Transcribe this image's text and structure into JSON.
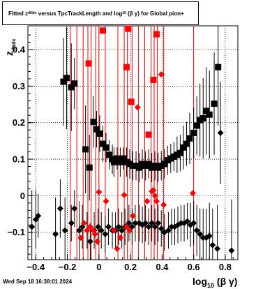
{
  "title": {
    "prefix": "Fitted",
    "zsym": "z",
    "zsub": "dNdx",
    "mid": "versus TpcTrackLength and log",
    "logsub": "10",
    "suffix": "(β γ) for Global pion+"
  },
  "footer": "Wed Sep 18 16:38:01 2024",
  "axes": {
    "xlabel_main": "log",
    "xlabel_sub": "10",
    "xlabel_tail": "(β γ)",
    "ylabel_main": "z",
    "ylabel_sub": "dNdx"
  },
  "chart_data": {
    "type": "scatter",
    "xlim": [
      -0.45,
      0.88
    ],
    "ylim": [
      -0.175,
      0.465
    ],
    "xticks": [
      -0.4,
      -0.2,
      0,
      0.2,
      0.4,
      0.6,
      0.8
    ],
    "xtick_labels": [
      "−0.4",
      "−0.2",
      "0",
      "0.2",
      "0.4",
      "0.6",
      "0.8"
    ],
    "yticks": [
      -0.1,
      0,
      0.1,
      0.2,
      0.3,
      0.4
    ],
    "ytick_labels": [
      "−0.1",
      "0",
      "0.1",
      "0.2",
      "0.3",
      "0.4"
    ],
    "grid": true,
    "colors": {
      "black": "#000000",
      "red": "#ff0000"
    },
    "vlines_x": [
      -0.18,
      -0.14,
      -0.1,
      -0.07,
      -0.05,
      -0.02,
      0.0,
      0.04,
      0.12,
      0.16,
      0.18,
      0.21,
      0.25,
      0.29,
      0.33,
      0.35,
      0.37,
      0.41,
      0.6
    ],
    "series": [
      {
        "marker": "square",
        "color": "#000000",
        "points": [
          [
            -0.225,
            0.312,
            0.12
          ],
          [
            -0.205,
            0.322,
            0.14
          ],
          [
            -0.175,
            0.297,
            0.12
          ],
          [
            -0.155,
            0.307,
            0.07
          ],
          [
            -0.085,
            0.127,
            0.12
          ],
          [
            -0.06,
            0.077,
            0.09
          ],
          [
            -0.035,
            0.202,
            0.07
          ],
          [
            -0.015,
            0.182,
            0.05
          ],
          [
            0.005,
            0.17,
            0.05
          ],
          [
            0.025,
            0.142,
            0.05
          ],
          [
            0.045,
            0.132,
            0.04
          ],
          [
            0.065,
            0.112,
            0.04
          ],
          [
            0.085,
            0.1,
            0.04
          ],
          [
            0.095,
            0.092,
            0.04
          ],
          [
            0.115,
            0.102,
            0.03
          ],
          [
            0.135,
            0.092,
            0.04
          ],
          [
            0.155,
            0.102,
            0.03
          ],
          [
            0.175,
            0.092,
            0.04
          ],
          [
            0.195,
            0.087,
            0.04
          ],
          [
            0.215,
            0.082,
            0.04
          ],
          [
            0.235,
            0.082,
            0.04
          ],
          [
            0.255,
            0.077,
            0.04
          ],
          [
            0.275,
            0.087,
            0.04
          ],
          [
            0.295,
            0.082,
            0.04
          ],
          [
            0.315,
            0.087,
            0.04
          ],
          [
            0.335,
            0.077,
            0.04
          ],
          [
            0.355,
            0.082,
            0.04
          ],
          [
            0.375,
            0.077,
            0.04
          ],
          [
            0.395,
            0.082,
            0.04
          ],
          [
            0.415,
            0.087,
            0.04
          ],
          [
            0.435,
            0.097,
            0.04
          ],
          [
            0.455,
            0.102,
            0.04
          ],
          [
            0.475,
            0.107,
            0.04
          ],
          [
            0.495,
            0.112,
            0.05
          ],
          [
            0.515,
            0.117,
            0.05
          ],
          [
            0.535,
            0.132,
            0.06
          ],
          [
            0.555,
            0.142,
            0.06
          ],
          [
            0.575,
            0.157,
            0.07
          ],
          [
            0.6,
            0.172,
            0.07
          ],
          [
            0.62,
            0.192,
            0.08
          ],
          [
            0.64,
            0.207,
            0.1
          ],
          [
            0.66,
            0.212,
            0.11
          ],
          [
            0.68,
            0.232,
            0.12
          ],
          [
            0.7,
            0.222,
            0.12
          ],
          [
            0.73,
            0.252,
            0.14
          ],
          [
            0.755,
            0.352,
            0.16
          ]
        ]
      },
      {
        "marker": "square",
        "color": "#ff0000",
        "points": [
          [
            -0.065,
            0.362,
            0
          ],
          [
            0.025,
            0.452,
            0
          ],
          [
            0.175,
            0.352,
            0
          ],
          [
            0.185,
            0.457,
            0
          ],
          [
            0.205,
            0.257,
            0
          ],
          [
            0.315,
            0.167,
            0
          ],
          [
            0.345,
            0.317,
            0
          ],
          [
            0.365,
            0.442,
            0
          ]
        ]
      },
      {
        "marker": "diamond",
        "color": "#000000",
        "points": [
          [
            -0.425,
            -0.085,
            0.1
          ],
          [
            -0.4,
            -0.065,
            0.08
          ],
          [
            -0.385,
            -0.055,
            0.06
          ],
          [
            -0.275,
            -0.105,
            0.1
          ],
          [
            -0.245,
            -0.035,
            0.08
          ],
          [
            -0.215,
            -0.095,
            0.09
          ],
          [
            -0.175,
            -0.075,
            0.05
          ],
          [
            -0.155,
            -0.035,
            0.05
          ],
          [
            -0.125,
            -0.095,
            0.08
          ],
          [
            -0.105,
            -0.085,
            0.06
          ],
          [
            -0.075,
            -0.095,
            0.05
          ],
          [
            -0.055,
            -0.125,
            0.05
          ],
          [
            -0.03,
            -0.095,
            0.05
          ],
          [
            -0.005,
            -0.085,
            0.05
          ],
          [
            0.015,
            -0.095,
            0.05
          ],
          [
            0.04,
            -0.105,
            0.05
          ],
          [
            0.06,
            -0.085,
            0.05
          ],
          [
            0.085,
            -0.095,
            0.05
          ],
          [
            0.105,
            -0.095,
            0.05
          ],
          [
            0.125,
            -0.085,
            0.05
          ],
          [
            0.145,
            -0.095,
            0.05
          ],
          [
            0.165,
            -0.085,
            0.05
          ],
          [
            0.19,
            -0.075,
            0.05
          ],
          [
            0.21,
            -0.085,
            0.05
          ],
          [
            0.23,
            -0.075,
            0.05
          ],
          [
            0.255,
            -0.075,
            0.05
          ],
          [
            0.275,
            -0.08,
            0.05
          ],
          [
            0.295,
            -0.075,
            0.05
          ],
          [
            0.315,
            -0.085,
            0.05
          ],
          [
            0.335,
            -0.075,
            0.05
          ],
          [
            0.355,
            -0.085,
            0.05
          ],
          [
            0.375,
            -0.075,
            0.05
          ],
          [
            0.395,
            -0.09,
            0.05
          ],
          [
            0.415,
            -0.1,
            0.05
          ],
          [
            0.44,
            -0.095,
            0.05
          ],
          [
            0.46,
            -0.085,
            0.05
          ],
          [
            0.48,
            -0.085,
            0.05
          ],
          [
            0.5,
            -0.08,
            0.05
          ],
          [
            0.52,
            -0.075,
            0.05
          ],
          [
            0.54,
            -0.075,
            0.05
          ],
          [
            0.56,
            -0.07,
            0.05
          ],
          [
            0.58,
            -0.08,
            0.06
          ],
          [
            0.6,
            -0.075,
            0.06
          ],
          [
            0.62,
            -0.095,
            0.07
          ],
          [
            0.64,
            -0.105,
            0.07
          ],
          [
            0.66,
            -0.115,
            0.08
          ],
          [
            0.68,
            -0.115,
            0.08
          ],
          [
            0.7,
            -0.11,
            0.09
          ],
          [
            0.72,
            -0.135,
            0.1
          ],
          [
            0.75,
            -0.145,
            0.12
          ],
          [
            0.77,
            0.172,
            0.14
          ],
          [
            0.84,
            -0.15,
            0.14
          ]
        ]
      },
      {
        "marker": "diamond",
        "color": "#ff0000",
        "points": [
          [
            -0.115,
            -0.115,
            0
          ],
          [
            -0.095,
            -0.075,
            0
          ],
          [
            -0.075,
            -0.095,
            0
          ],
          [
            -0.055,
            -0.085,
            0
          ],
          [
            -0.035,
            -0.095,
            0
          ],
          [
            -0.025,
            -0.105,
            0
          ],
          [
            -0.01,
            -0.125,
            0
          ],
          [
            0.0,
            0.01,
            0
          ],
          [
            0.045,
            -0.015,
            0
          ],
          [
            0.095,
            -0.095,
            0
          ],
          [
            0.115,
            -0.145,
            0
          ],
          [
            0.135,
            -0.115,
            0
          ],
          [
            0.16,
            0.002,
            0
          ],
          [
            0.175,
            -0.085,
            0
          ],
          [
            0.195,
            -0.095,
            0
          ],
          [
            0.215,
            -0.055,
            0
          ],
          [
            0.245,
            0.242,
            0
          ],
          [
            0.305,
            -0.015,
            0
          ],
          [
            0.335,
            0.012,
            0
          ],
          [
            0.345,
            0.015,
            0
          ],
          [
            0.355,
            0.0,
            0
          ],
          [
            0.365,
            -0.015,
            0
          ],
          [
            0.395,
            0.332,
            0
          ],
          [
            0.41,
            -0.025,
            0
          ],
          [
            0.595,
            0.007,
            0
          ]
        ]
      }
    ]
  }
}
